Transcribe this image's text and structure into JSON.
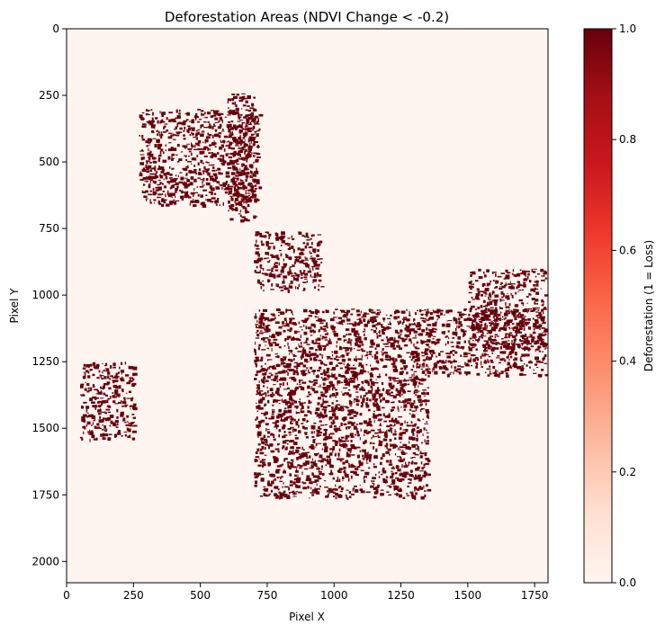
{
  "chart_data": {
    "type": "heatmap",
    "title": "Deforestation Areas (NDVI Change < -0.2)",
    "xlabel": "Pixel X",
    "ylabel": "Pixel Y",
    "xlim": [
      0,
      1800
    ],
    "ylim": [
      2080,
      0
    ],
    "x_ticks": [
      0,
      250,
      500,
      750,
      1000,
      1250,
      1500,
      1750
    ],
    "y_ticks": [
      0,
      250,
      500,
      750,
      1000,
      1250,
      1500,
      1750,
      2000
    ],
    "colormap": "Reds",
    "value_range": [
      0,
      1
    ],
    "colorbar": {
      "label": "Deforestation (1 = Loss)",
      "ticks": [
        "0.0",
        "0.2",
        "0.4",
        "0.6",
        "0.8",
        "1.0"
      ],
      "tick_values": [
        0.0,
        0.2,
        0.4,
        0.6,
        0.8,
        1.0
      ],
      "colors": [
        "#fff5f0",
        "#fee0d2",
        "#fcbba1",
        "#fc9272",
        "#fb6a4a",
        "#ef3b2c",
        "#cb181d",
        "#a50f15",
        "#67000d"
      ]
    },
    "loss_regions": [
      {
        "x": [
          600,
          700
        ],
        "y": [
          240,
          720
        ]
      },
      {
        "x": [
          270,
          720
        ],
        "y": [
          300,
          660
        ]
      },
      {
        "x": [
          700,
          950
        ],
        "y": [
          760,
          980
        ]
      },
      {
        "x": [
          700,
          1790
        ],
        "y": [
          1050,
          1300
        ]
      },
      {
        "x": [
          1500,
          1790
        ],
        "y": [
          900,
          1200
        ]
      },
      {
        "x": [
          700,
          1350
        ],
        "y": [
          1300,
          1760
        ]
      },
      {
        "x": [
          50,
          250
        ],
        "y": [
          1250,
          1540
        ]
      }
    ],
    "loss_value": 1,
    "background_value": 0
  }
}
